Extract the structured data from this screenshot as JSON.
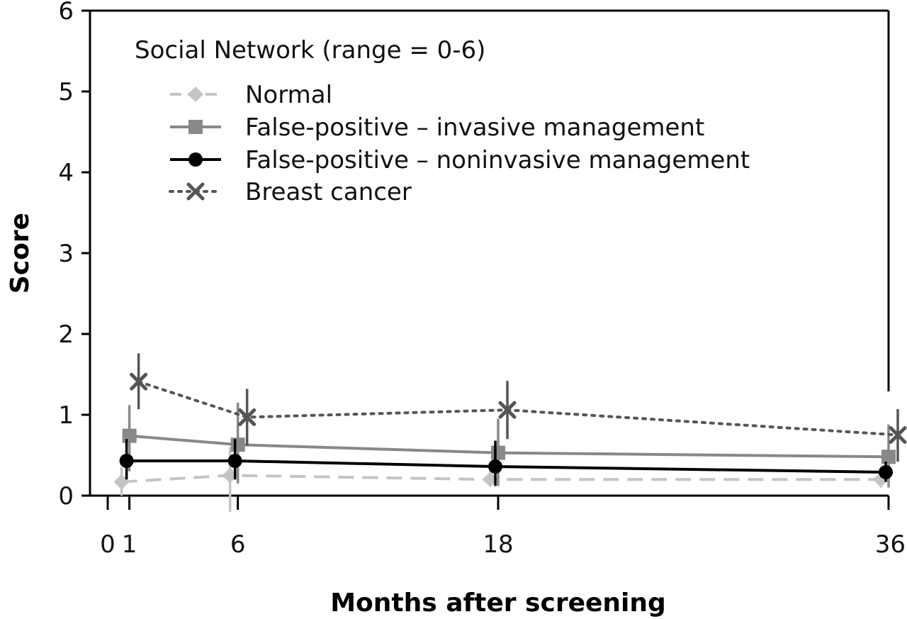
{
  "chart_data": {
    "type": "line",
    "title": "",
    "annotation": "Social Network (range = 0-6)",
    "xlabel": "Months after screening",
    "ylabel": "Score",
    "xlim": [
      0,
      36
    ],
    "ylim": [
      0,
      6
    ],
    "x_ticks": [
      "0",
      "1",
      "6",
      "18",
      "36"
    ],
    "y_ticks": [
      "0",
      "1",
      "2",
      "3",
      "4",
      "5",
      "6"
    ],
    "legend_position": "top-left",
    "grid": false,
    "series": [
      {
        "name": "Normal",
        "color": "#c4c4c4",
        "line_style": "dashed",
        "marker": "diamond",
        "x": [
          1,
          6,
          18,
          36
        ],
        "y": [
          0.17,
          0.25,
          0.2,
          0.2
        ],
        "err_low": [
          0.0,
          -0.2,
          0.12,
          0.1
        ],
        "err_high": [
          0.35,
          0.6,
          0.32,
          0.32
        ]
      },
      {
        "name": "False-positive – invasive management",
        "color": "#888888",
        "line_style": "solid",
        "marker": "square",
        "x": [
          1,
          6,
          18,
          36
        ],
        "y": [
          0.74,
          0.63,
          0.53,
          0.48
        ],
        "err_low": [
          0.3,
          0.15,
          0.12,
          0.1
        ],
        "err_high": [
          1.12,
          1.15,
          0.95,
          0.88
        ]
      },
      {
        "name": "False-positive – noninvasive management",
        "color": "#000000",
        "line_style": "solid",
        "marker": "circle",
        "x": [
          1,
          6,
          18,
          36
        ],
        "y": [
          0.43,
          0.43,
          0.36,
          0.29
        ],
        "err_low": [
          0.2,
          0.2,
          0.12,
          0.17
        ],
        "err_high": [
          0.7,
          0.7,
          0.68,
          0.42
        ]
      },
      {
        "name": "Breast cancer",
        "color": "#555555",
        "line_style": "dotted",
        "marker": "x",
        "x": [
          1,
          6,
          18,
          36
        ],
        "y": [
          1.41,
          0.97,
          1.06,
          0.75
        ],
        "err_low": [
          1.07,
          0.62,
          0.7,
          0.42
        ],
        "err_high": [
          1.76,
          1.32,
          1.42,
          1.07
        ]
      }
    ]
  }
}
